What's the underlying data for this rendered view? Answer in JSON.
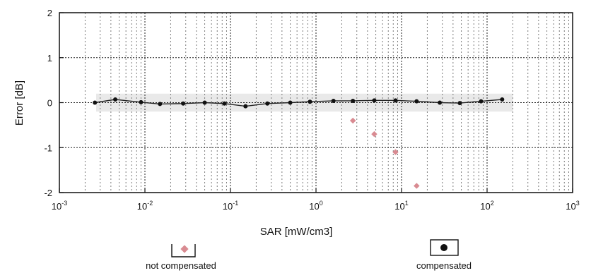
{
  "chart_data": {
    "type": "scatter",
    "title": "",
    "xlabel": "SAR [mW/cm3]",
    "ylabel": "Error [dB]",
    "xscale": "log",
    "xlim": [
      0.001,
      1000
    ],
    "ylim": [
      -2,
      2
    ],
    "grid": true,
    "legend_position": "bottom",
    "x_tick_labels": [
      {
        "base": "10",
        "exp": "-3"
      },
      {
        "base": "10",
        "exp": "-2"
      },
      {
        "base": "10",
        "exp": "-1"
      },
      {
        "base": "10",
        "exp": "0"
      },
      {
        "base": "10",
        "exp": "1"
      },
      {
        "base": "10",
        "exp": "2"
      },
      {
        "base": "10",
        "exp": "3"
      }
    ],
    "y_tick_labels": [
      "2",
      "1",
      "0",
      "-1",
      "-2"
    ],
    "y_ticks": [
      2,
      1,
      0,
      -1,
      -2
    ],
    "uncertainty_band": [
      -0.2,
      0.2
    ],
    "series": [
      {
        "name": "not compensated",
        "marker": "diamond",
        "color": "#d98b92",
        "points": [
          [
            2.7,
            -0.4
          ],
          [
            4.8,
            -0.7
          ],
          [
            8.5,
            -1.1
          ],
          [
            15,
            -1.85
          ]
        ]
      },
      {
        "name": "compensated",
        "marker": "circle",
        "color": "#111111",
        "points": [
          [
            0.0026,
            0.0
          ],
          [
            0.0045,
            0.07
          ],
          [
            0.009,
            0.01
          ],
          [
            0.015,
            -0.03
          ],
          [
            0.028,
            -0.02
          ],
          [
            0.05,
            0.0
          ],
          [
            0.085,
            -0.02
          ],
          [
            0.15,
            -0.08
          ],
          [
            0.27,
            -0.02
          ],
          [
            0.5,
            0.0
          ],
          [
            0.85,
            0.02
          ],
          [
            1.6,
            0.04
          ],
          [
            2.7,
            0.04
          ],
          [
            4.8,
            0.05
          ],
          [
            8.5,
            0.05
          ],
          [
            15,
            0.03
          ],
          [
            28,
            0.0
          ],
          [
            48,
            -0.01
          ],
          [
            85,
            0.03
          ],
          [
            150,
            0.07
          ]
        ]
      }
    ]
  }
}
